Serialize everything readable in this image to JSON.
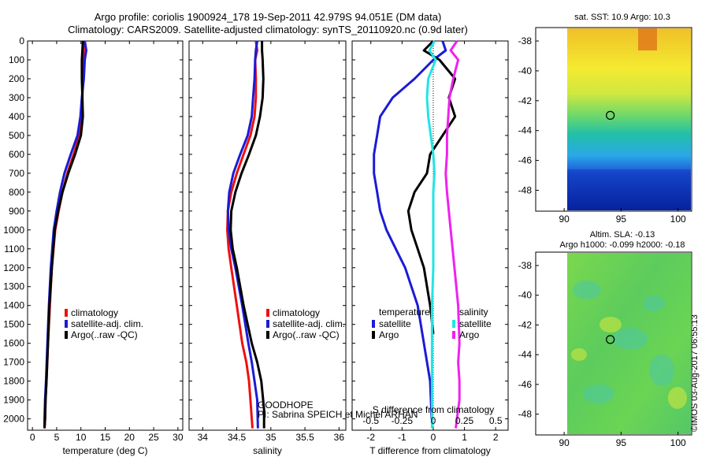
{
  "title_line1": "Argo profile: coriolis 1900924_178 19-Sep-2011 42.979S 94.051E (DM data)",
  "title_line2": "Climatology: CARS2009. Satellite-adjusted climatology: synTS_20110920.nc (0.9d later)",
  "colors": {
    "red": "#ee1111",
    "blue": "#1b1bd6",
    "black": "#000000",
    "cyan": "#22e4e4",
    "magenta": "#ee22ee"
  },
  "credit_line1": "GOODHOPE",
  "credit_line2": "PI: Sabrina SPEICH et Michel ARHAN",
  "imos_stamp": "©IMOS 03-Aug-2017 06:55:13",
  "map1_title": "sat. SST: 10.9 Argo: 10.3",
  "map2_title1": "Altim. SLA: -0.13",
  "map2_title2": "Argo h1000: -0.099 h2000: -0.18",
  "chart_data": [
    {
      "type": "line",
      "xlabel": "temperature (deg C)",
      "ylabel": "",
      "xlim": [
        -1,
        31
      ],
      "ylim": [
        2060,
        0
      ],
      "xticks": [
        "0",
        "5",
        "10",
        "15",
        "20",
        "25",
        "30"
      ],
      "yticks": [
        "0",
        "100",
        "200",
        "300",
        "400",
        "500",
        "600",
        "700",
        "800",
        "900",
        "1000",
        "1100",
        "1200",
        "1300",
        "1400",
        "1500",
        "1600",
        "1700",
        "1800",
        "1900",
        "2000"
      ],
      "legend": [
        "climatology",
        "satellite-adj. clim.",
        "Argo(..raw -QC)"
      ],
      "series": [
        {
          "name": "climatology",
          "color": "red",
          "x": [
            10.4,
            10.6,
            10.5,
            10.4,
            10.3,
            10.1,
            9.7,
            8.5,
            7.2,
            6.2,
            5.4,
            4.7,
            4.0,
            3.6,
            3.2,
            2.9,
            2.7,
            2.6,
            2.5,
            2.5
          ],
          "y": [
            0,
            50,
            100,
            200,
            300,
            400,
            500,
            600,
            700,
            800,
            900,
            1000,
            1200,
            1400,
            1600,
            1800,
            1900,
            2000,
            2050,
            2050
          ]
        },
        {
          "name": "satellite-adj. clim.",
          "color": "blue",
          "x": [
            10.8,
            11.1,
            10.8,
            10.6,
            10.2,
            9.9,
            9.3,
            7.9,
            6.6,
            5.7,
            5.0,
            4.4,
            3.8,
            3.4,
            3.1,
            2.8,
            2.6,
            2.5,
            2.5
          ],
          "y": [
            0,
            50,
            100,
            200,
            300,
            400,
            500,
            600,
            700,
            800,
            900,
            1000,
            1200,
            1400,
            1600,
            1800,
            1900,
            2000,
            2050
          ]
        },
        {
          "name": "Argo(..raw -QC)",
          "color": "black",
          "x": [
            10.4,
            10.3,
            10.2,
            10.2,
            10.3,
            10.4,
            10.0,
            8.8,
            7.4,
            6.2,
            5.3,
            4.6,
            4.0,
            3.5,
            3.2,
            2.9,
            2.7,
            2.6,
            2.5
          ],
          "y": [
            0,
            50,
            100,
            200,
            300,
            400,
            500,
            600,
            700,
            800,
            900,
            1000,
            1200,
            1400,
            1600,
            1800,
            1900,
            2000,
            2050
          ]
        }
      ]
    },
    {
      "type": "line",
      "xlabel": "salinity",
      "ylabel": "",
      "xlim": [
        33.8,
        36.1
      ],
      "ylim": [
        2060,
        0
      ],
      "xticks": [
        "34",
        "34.5",
        "35",
        "35.5",
        "36"
      ],
      "yticks": [],
      "legend": [
        "climatology",
        "satellite-adj. clim.",
        "Argo(..raw -QC)"
      ],
      "series": [
        {
          "name": "climatology",
          "color": "red",
          "x": [
            34.78,
            34.8,
            34.77,
            34.78,
            34.78,
            34.76,
            34.7,
            34.6,
            34.5,
            34.42,
            34.37,
            34.36,
            34.38,
            34.42,
            34.5,
            34.58,
            34.64,
            34.68,
            34.7,
            34.72,
            34.73
          ],
          "y": [
            0,
            50,
            100,
            200,
            300,
            400,
            500,
            600,
            700,
            800,
            900,
            1000,
            1100,
            1200,
            1400,
            1600,
            1700,
            1800,
            1900,
            2000,
            2050
          ]
        },
        {
          "name": "satellite-adj. clim.",
          "color": "blue",
          "x": [
            34.8,
            34.78,
            34.77,
            34.76,
            34.74,
            34.72,
            34.66,
            34.55,
            34.45,
            34.39,
            34.37,
            34.38,
            34.42,
            34.48,
            34.58,
            34.67,
            34.72,
            34.76,
            34.8,
            34.81
          ],
          "y": [
            0,
            50,
            100,
            200,
            300,
            400,
            500,
            600,
            700,
            800,
            900,
            1000,
            1100,
            1200,
            1400,
            1600,
            1700,
            1800,
            1900,
            2050
          ]
        },
        {
          "name": "Argo(..raw -QC)",
          "color": "black",
          "x": [
            34.87,
            34.87,
            34.88,
            34.89,
            34.88,
            34.84,
            34.78,
            34.68,
            34.57,
            34.48,
            34.42,
            34.41,
            34.44,
            34.5,
            34.6,
            34.72,
            34.8,
            34.86,
            34.9,
            34.9
          ],
          "y": [
            0,
            50,
            100,
            200,
            300,
            400,
            500,
            600,
            700,
            800,
            900,
            1000,
            1100,
            1200,
            1400,
            1600,
            1700,
            1800,
            1950,
            2050
          ]
        }
      ]
    },
    {
      "type": "line",
      "xlabel": "T difference from climatology",
      "xlabel2": "S difference from climatology",
      "ylabel": "",
      "xlim": [
        -2.6,
        2.4
      ],
      "ylim": [
        2060,
        0
      ],
      "xticks": [
        "-2",
        "-1",
        "0",
        "1",
        "2"
      ],
      "xticks2": [
        "-0.5",
        "-0.25",
        "0",
        "0.25",
        "0.5"
      ],
      "yticks": [],
      "legend_group1": "temperature",
      "legend_group2": "salinity",
      "legend": [
        "satellite",
        "Argo",
        "satellite",
        "Argo"
      ],
      "series": [
        {
          "name": "satellite",
          "group": "temperature",
          "color": "blue",
          "x": [
            0.3,
            0.4,
            0.0,
            -0.6,
            -1.3,
            -1.7,
            -1.8,
            -1.9,
            -1.9,
            -1.8,
            -1.7,
            -1.5,
            -1.2,
            -0.9,
            -0.5,
            -0.3,
            -0.1,
            -0.05
          ],
          "y": [
            0,
            50,
            100,
            200,
            300,
            400,
            500,
            600,
            700,
            800,
            900,
            1000,
            1100,
            1200,
            1400,
            1600,
            1800,
            2000
          ]
        },
        {
          "name": "Argo",
          "group": "temperature",
          "color": "black",
          "x": [
            0.0,
            -0.3,
            0.2,
            0.7,
            0.5,
            0.7,
            0.3,
            -0.1,
            -0.2,
            -0.6,
            -0.8,
            -0.7,
            -0.5,
            -0.3,
            -0.1,
            0.0
          ],
          "y": [
            0,
            50,
            100,
            200,
            300,
            400,
            500,
            600,
            700,
            800,
            900,
            1000,
            1100,
            1200,
            1400,
            1550
          ]
        },
        {
          "name": "satellite",
          "group": "salinity",
          "color": "cyan",
          "x": [
            0.01,
            -0.03,
            0.02,
            -0.04,
            -0.05,
            -0.04,
            -0.02,
            0.0,
            0.01,
            0.0,
            0.0,
            0.0,
            -0.01,
            -0.01,
            -0.01,
            -0.01
          ],
          "y": [
            0,
            50,
            100,
            200,
            300,
            400,
            500,
            600,
            700,
            800,
            1000,
            1200,
            1400,
            1600,
            1800,
            2050
          ]
        },
        {
          "name": "Argo",
          "group": "salinity",
          "color": "magenta",
          "x": [
            0.19,
            0.14,
            0.2,
            0.16,
            0.13,
            0.12,
            0.11,
            0.11,
            0.1,
            0.11,
            0.14,
            0.17,
            0.2,
            0.21,
            0.2,
            0.21,
            0.21,
            0.18
          ],
          "y": [
            0,
            50,
            100,
            200,
            300,
            400,
            500,
            600,
            700,
            800,
            1000,
            1200,
            1400,
            1600,
            1700,
            1800,
            1900,
            2050
          ]
        }
      ]
    },
    {
      "type": "heatmap",
      "title": "sat. SST: 10.9 Argo: 10.3",
      "xticks": [
        "90",
        "95",
        "100"
      ],
      "yticks": [
        "-38",
        "-40",
        "-42",
        "-44",
        "-46",
        "-48"
      ],
      "xlim": [
        87.5,
        101.2
      ],
      "ylim": [
        -49.4,
        -37.1
      ],
      "marker": {
        "lon": 94.051,
        "lat": -42.979
      }
    },
    {
      "type": "heatmap",
      "title": "Altim. SLA: -0.13",
      "title2": "Argo h1000: -0.099 h2000: -0.18",
      "xticks": [
        "90",
        "95",
        "100"
      ],
      "yticks": [
        "-38",
        "-40",
        "-42",
        "-44",
        "-46",
        "-48"
      ],
      "xlim": [
        87.5,
        101.2
      ],
      "ylim": [
        -49.4,
        -37.1
      ],
      "marker": {
        "lon": 94.051,
        "lat": -42.979
      }
    }
  ]
}
